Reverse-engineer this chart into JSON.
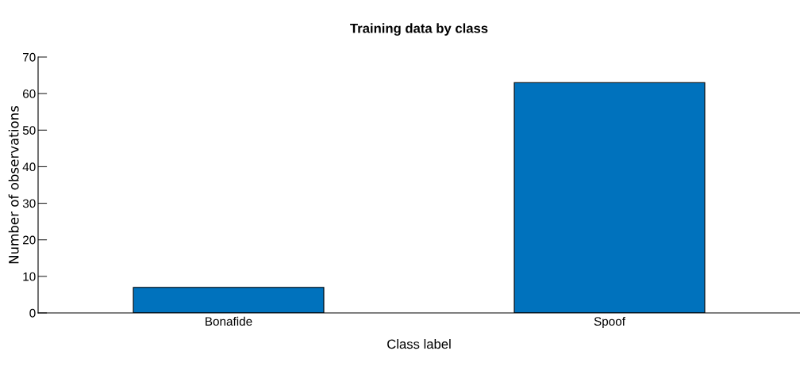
{
  "chart_data": {
    "type": "bar",
    "title": "Training data by class",
    "xlabel": "Class label",
    "ylabel": "Number of observations",
    "categories": [
      "Bonafide",
      "Spoof"
    ],
    "values": [
      7,
      63
    ],
    "color": "#0072bd",
    "ylim": [
      0,
      70
    ],
    "yticks": [
      0,
      10,
      20,
      30,
      40,
      50,
      60,
      70
    ],
    "grid": false,
    "legend": false
  }
}
